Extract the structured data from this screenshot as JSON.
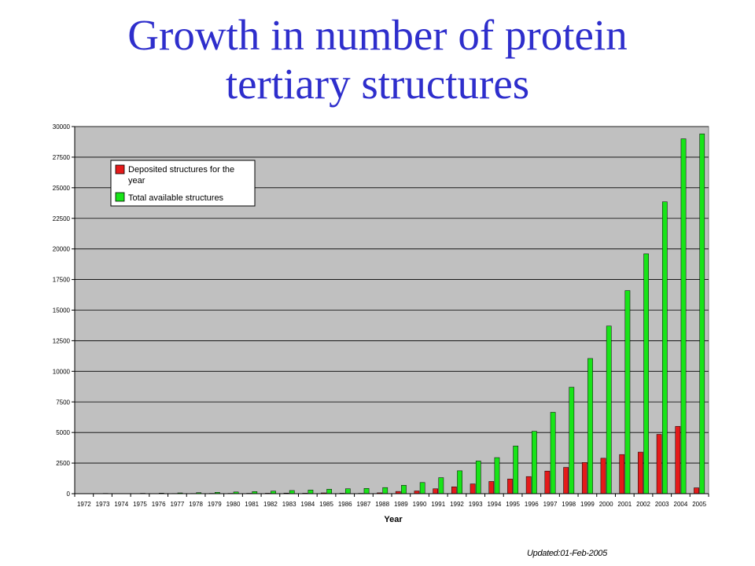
{
  "slide": {
    "title_line1": "Growth in number of protein",
    "title_line2": "tertiary structures",
    "footer": "Updated:01-Feb-2005"
  },
  "colors": {
    "title": "#2e2ecc",
    "plot_background": "#c0c0c0",
    "deposited": "#e41a1a",
    "total": "#18e418"
  },
  "chart_data": {
    "type": "bar",
    "title": "",
    "xlabel": "Year",
    "ylabel": "",
    "ylim": [
      0,
      30000
    ],
    "y_ticks": [
      0,
      2500,
      5000,
      7500,
      10000,
      12500,
      15000,
      17500,
      20000,
      22500,
      25000,
      27500,
      30000
    ],
    "grid": true,
    "legend": {
      "placement": "top-left"
    },
    "categories": [
      "1972",
      "1973",
      "1974",
      "1975",
      "1976",
      "1977",
      "1978",
      "1979",
      "1980",
      "1981",
      "1982",
      "1983",
      "1984",
      "1985",
      "1986",
      "1987",
      "1988",
      "1989",
      "1990",
      "1991",
      "1992",
      "1993",
      "1994",
      "1995",
      "1996",
      "1997",
      "1998",
      "1999",
      "2000",
      "2001",
      "2002",
      "2003",
      "2004",
      "2005"
    ],
    "series": [
      {
        "name": "Deposited structures for the year",
        "color": "#e41a1a",
        "values": [
          1,
          12,
          1,
          6,
          13,
          20,
          21,
          27,
          28,
          32,
          37,
          50,
          38,
          65,
          40,
          30,
          70,
          185,
          225,
          400,
          560,
          800,
          1000,
          1200,
          1400,
          1850,
          2150,
          2550,
          2900,
          3200,
          3400,
          4850,
          5500,
          480
        ]
      },
      {
        "name": "Total available structures",
        "color": "#18e418",
        "values": [
          13,
          25,
          13,
          31,
          44,
          64,
          85,
          112,
          140,
          172,
          209,
          259,
          297,
          362,
          402,
          432,
          502,
          687,
          912,
          1312,
          1872,
          2672,
          2950,
          3900,
          5100,
          6650,
          8700,
          11050,
          13700,
          16600,
          19600,
          23850,
          29000,
          29400
        ]
      }
    ]
  }
}
